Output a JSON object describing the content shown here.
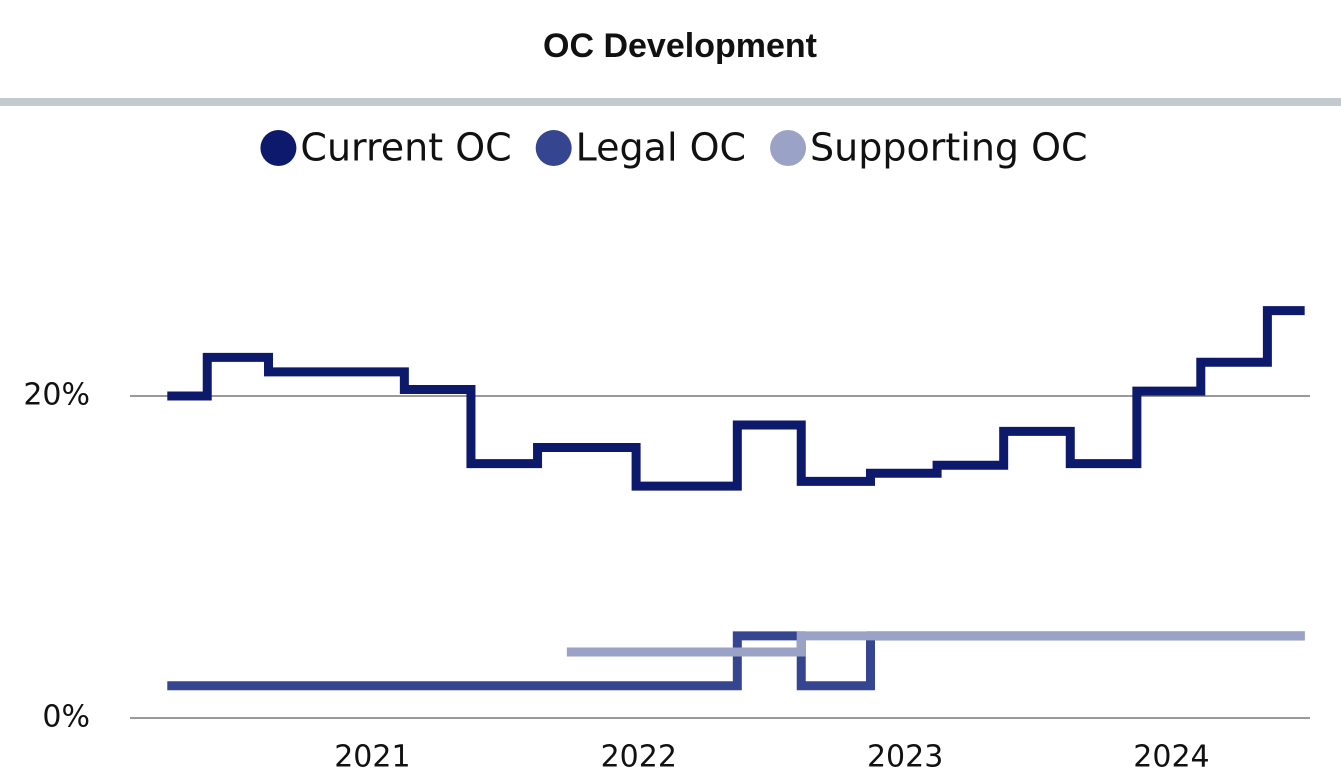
{
  "chart_data": {
    "type": "step",
    "title": "OC Development",
    "xlim": [
      2020.09,
      2024.52
    ],
    "xticks": [
      2021,
      2022,
      2023,
      2024
    ],
    "ylim": [
      0,
      30
    ],
    "yticks": [
      {
        "value": 0,
        "label": "0%"
      },
      {
        "value": 20,
        "label": "20%"
      }
    ],
    "grid": true,
    "legend": "top",
    "series": [
      {
        "name": "Current OC",
        "color": "#0d1a6b",
        "x": [
          2020.23,
          2020.38,
          2020.61,
          2021.12,
          2021.37,
          2021.62,
          2021.99,
          2022.37,
          2022.61,
          2022.87,
          2023.12,
          2023.37,
          2023.62,
          2023.87,
          2024.11,
          2024.36,
          2024.5
        ],
        "values": [
          20.0,
          22.4,
          21.5,
          20.4,
          15.8,
          16.8,
          14.4,
          18.2,
          14.7,
          15.2,
          15.7,
          17.8,
          15.8,
          20.3,
          22.1,
          25.3,
          25.3
        ]
      },
      {
        "name": "Legal OC",
        "color": "#35458f",
        "x": [
          2020.23,
          2022.37,
          2022.61,
          2022.87,
          2024.5
        ],
        "values": [
          2.0,
          5.1,
          2.0,
          5.1,
          5.1
        ]
      },
      {
        "name": "Supporting OC",
        "color": "#9aa3c6",
        "x": [
          2021.73,
          2022.61,
          2024.5
        ],
        "values": [
          4.1,
          5.1,
          5.1
        ]
      }
    ]
  }
}
